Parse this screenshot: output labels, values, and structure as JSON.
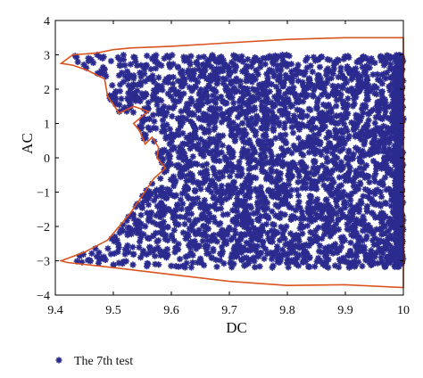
{
  "chart_data": {
    "type": "scatter",
    "xlabel": "DC",
    "ylabel": "AC",
    "xlim": [
      9.4,
      10
    ],
    "ylim": [
      -4,
      4
    ],
    "x_ticks": [
      "9.4",
      "9.5",
      "9.6",
      "9.7",
      "9.8",
      "9.9",
      "10"
    ],
    "y_ticks": [
      "4",
      "3",
      "2",
      "1",
      "0",
      "−1",
      "−2",
      "−3",
      "−4"
    ],
    "grid": false,
    "legend_position": "bottom-left",
    "series": [
      {
        "name": "The 7th test",
        "marker": "asterisk",
        "color": "#2b2b8f",
        "point_count_approx": 3500,
        "x_range": [
          9.41,
          10
        ],
        "y_range": [
          -3.85,
          3.5
        ]
      }
    ],
    "boundary": {
      "color": "#d9541e",
      "points": [
        [
          9.43,
          3.0
        ],
        [
          9.47,
          3.05
        ],
        [
          9.5,
          3.15
        ],
        [
          9.53,
          3.2
        ],
        [
          9.6,
          3.25
        ],
        [
          9.7,
          3.35
        ],
        [
          9.8,
          3.45
        ],
        [
          9.9,
          3.5
        ],
        [
          10,
          3.5
        ],
        [
          10,
          -3.78
        ],
        [
          9.9,
          -3.7
        ],
        [
          9.8,
          -3.72
        ],
        [
          9.7,
          -3.6
        ],
        [
          9.6,
          -3.4
        ],
        [
          9.5,
          -3.2
        ],
        [
          9.42,
          -3.05
        ],
        [
          9.41,
          -3.0
        ],
        [
          9.45,
          -2.75
        ],
        [
          9.49,
          -2.4
        ],
        [
          9.51,
          -2.0
        ],
        [
          9.53,
          -1.6
        ],
        [
          9.55,
          -1.1
        ],
        [
          9.57,
          -0.6
        ],
        [
          9.59,
          -0.3
        ],
        [
          9.575,
          0.0
        ],
        [
          9.578,
          0.3
        ],
        [
          9.567,
          0.6
        ],
        [
          9.555,
          0.4
        ],
        [
          9.545,
          0.8
        ],
        [
          9.535,
          1.0
        ],
        [
          9.56,
          1.35
        ],
        [
          9.535,
          1.5
        ],
        [
          9.51,
          1.3
        ],
        [
          9.49,
          1.8
        ],
        [
          9.485,
          2.3
        ],
        [
          9.455,
          2.55
        ],
        [
          9.43,
          2.7
        ],
        [
          9.41,
          2.75
        ],
        [
          9.43,
          3.0
        ]
      ]
    }
  }
}
